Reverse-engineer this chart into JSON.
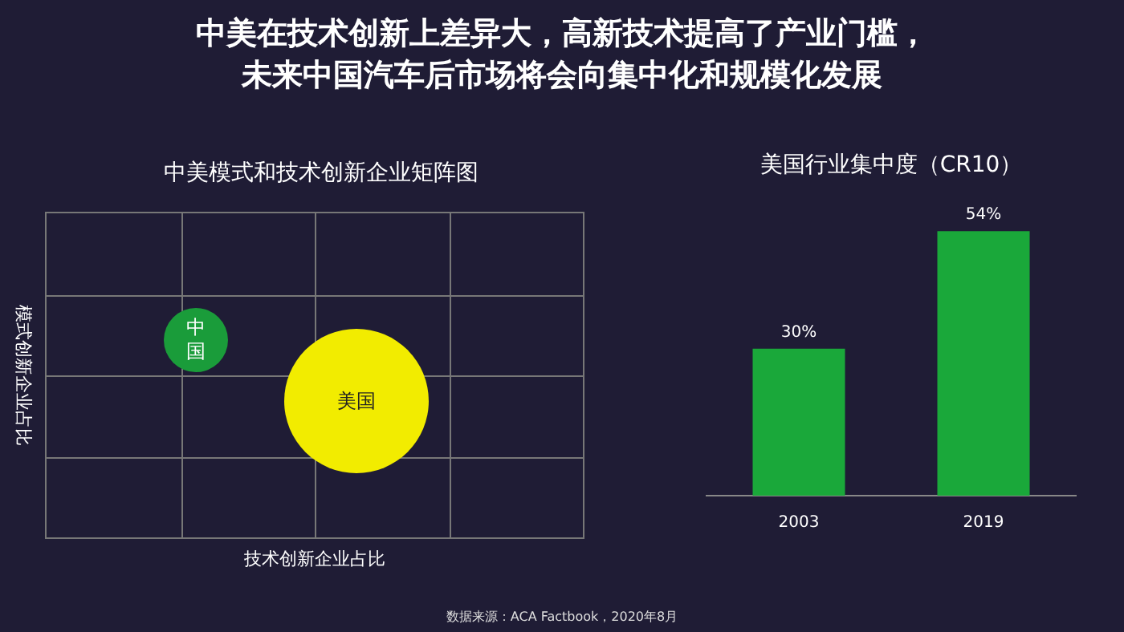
{
  "chart_data": [
    {
      "type": "other",
      "title": "中美在技术创新上差异大，高新技术提高了产业门槛，未来中国汽车后市场将会向集中化和规模化发展",
      "annotations": [
        "数据来源：ACA Factbook，2020年8月"
      ]
    },
    {
      "type": "other",
      "title": "中美模式和技术创新企业矩阵图",
      "xlabel": "技术创新企业占比",
      "ylabel": "模式创新企业占比",
      "annotations": [
        "中国",
        "美国"
      ]
    },
    {
      "type": "bar",
      "title": "美国行业集中度（CR10）",
      "categories": [
        "2003",
        "2019"
      ],
      "values": [
        30,
        54
      ],
      "color": "#1aa83a",
      "value_labels": [
        "30%",
        "54%"
      ]
    }
  ]
}
